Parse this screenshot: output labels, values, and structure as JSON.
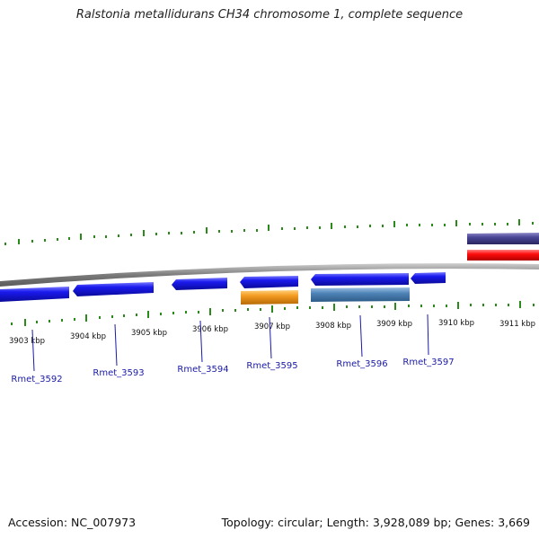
{
  "title": "Ralstonia metallidurans CH34 chromosome 1, complete sequence",
  "footer": {
    "accession": "Accession: NC_007973",
    "summary": "Topology: circular; Length: 3,928,089 bp; Genes: 3,669"
  },
  "kbp_labels": [
    "3903 kbp",
    "3904 kbp",
    "3905 kbp",
    "3906 kbp",
    "3907 kbp",
    "3908 kbp",
    "3909 kbp",
    "3910 kbp",
    "3911 kbp"
  ],
  "gene_labels": [
    "Rmet_3592",
    "Rmet_3593",
    "Rmet_3594",
    "Rmet_3595",
    "Rmet_3596",
    "Rmet_3597"
  ],
  "colors": {
    "gene_blue": "#1a1aee",
    "gene_orange": "#f39a1f",
    "gene_steel": "#4f84b8",
    "gene_purple": "#4a4595",
    "gene_red": "#ff0d0d",
    "tick_green": "#2a8a1a",
    "backbone": "#808080",
    "label_blue": "#1a1aa8"
  }
}
